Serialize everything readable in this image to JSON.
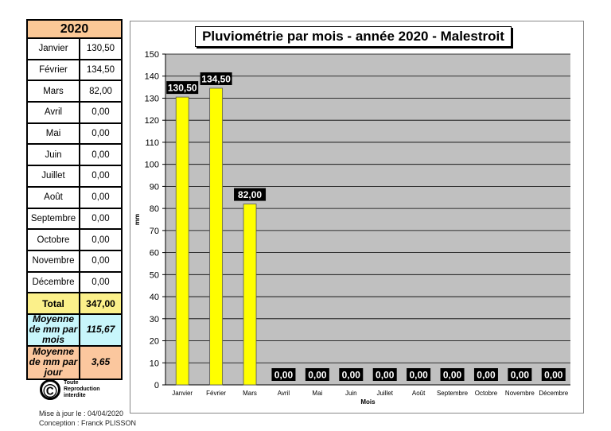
{
  "table": {
    "year": "2020",
    "rows": [
      [
        "Janvier",
        "130,50"
      ],
      [
        "Février",
        "134,50"
      ],
      [
        "Mars",
        "82,00"
      ],
      [
        "Avril",
        "0,00"
      ],
      [
        "Mai",
        "0,00"
      ],
      [
        "Juin",
        "0,00"
      ],
      [
        "Juillet",
        "0,00"
      ],
      [
        "Août",
        "0,00"
      ],
      [
        "Septembre",
        "0,00"
      ],
      [
        "Octobre",
        "0,00"
      ],
      [
        "Novembre",
        "0,00"
      ],
      [
        "Décembre",
        "0,00"
      ]
    ],
    "total_label": "Total",
    "total_value": "347,00",
    "avg_month_label": "Moyenne de mm par mois",
    "avg_month_value": "115,67",
    "avg_day_label": "Moyenne de mm par jour",
    "avg_day_value": "3,65"
  },
  "copyright": {
    "symbol": "©",
    "text": "Toute Reproduction interdite"
  },
  "footer": {
    "updated": "Mise à jour le : 04/04/2020",
    "author": "Conception : Franck PLISSON"
  },
  "chart_data": {
    "type": "bar",
    "title": "Pluviométrie par mois - année 2020 - Malestroit",
    "xlabel": "Mois",
    "ylabel": "mm",
    "ylim": [
      0,
      150
    ],
    "yticks": [
      0,
      10,
      20,
      30,
      40,
      50,
      60,
      70,
      80,
      90,
      100,
      110,
      120,
      130,
      140,
      150
    ],
    "grid": true,
    "categories": [
      "Janvier",
      "Février",
      "Mars",
      "Avril",
      "Mai",
      "Juin",
      "Juillet",
      "Août",
      "Septembre",
      "Octobre",
      "Novembre",
      "Décembre"
    ],
    "values": [
      130.5,
      134.5,
      82,
      0,
      0,
      0,
      0,
      0,
      0,
      0,
      0,
      0
    ],
    "data_labels": [
      "130,50",
      "134,50",
      "82,00",
      "0,00",
      "0,00",
      "0,00",
      "0,00",
      "0,00",
      "0,00",
      "0,00",
      "0,00",
      "0,00"
    ],
    "colors": {
      "bar": "#ffff00",
      "plot_bg": "#c0c0c0",
      "label_bg": "#000000"
    }
  }
}
